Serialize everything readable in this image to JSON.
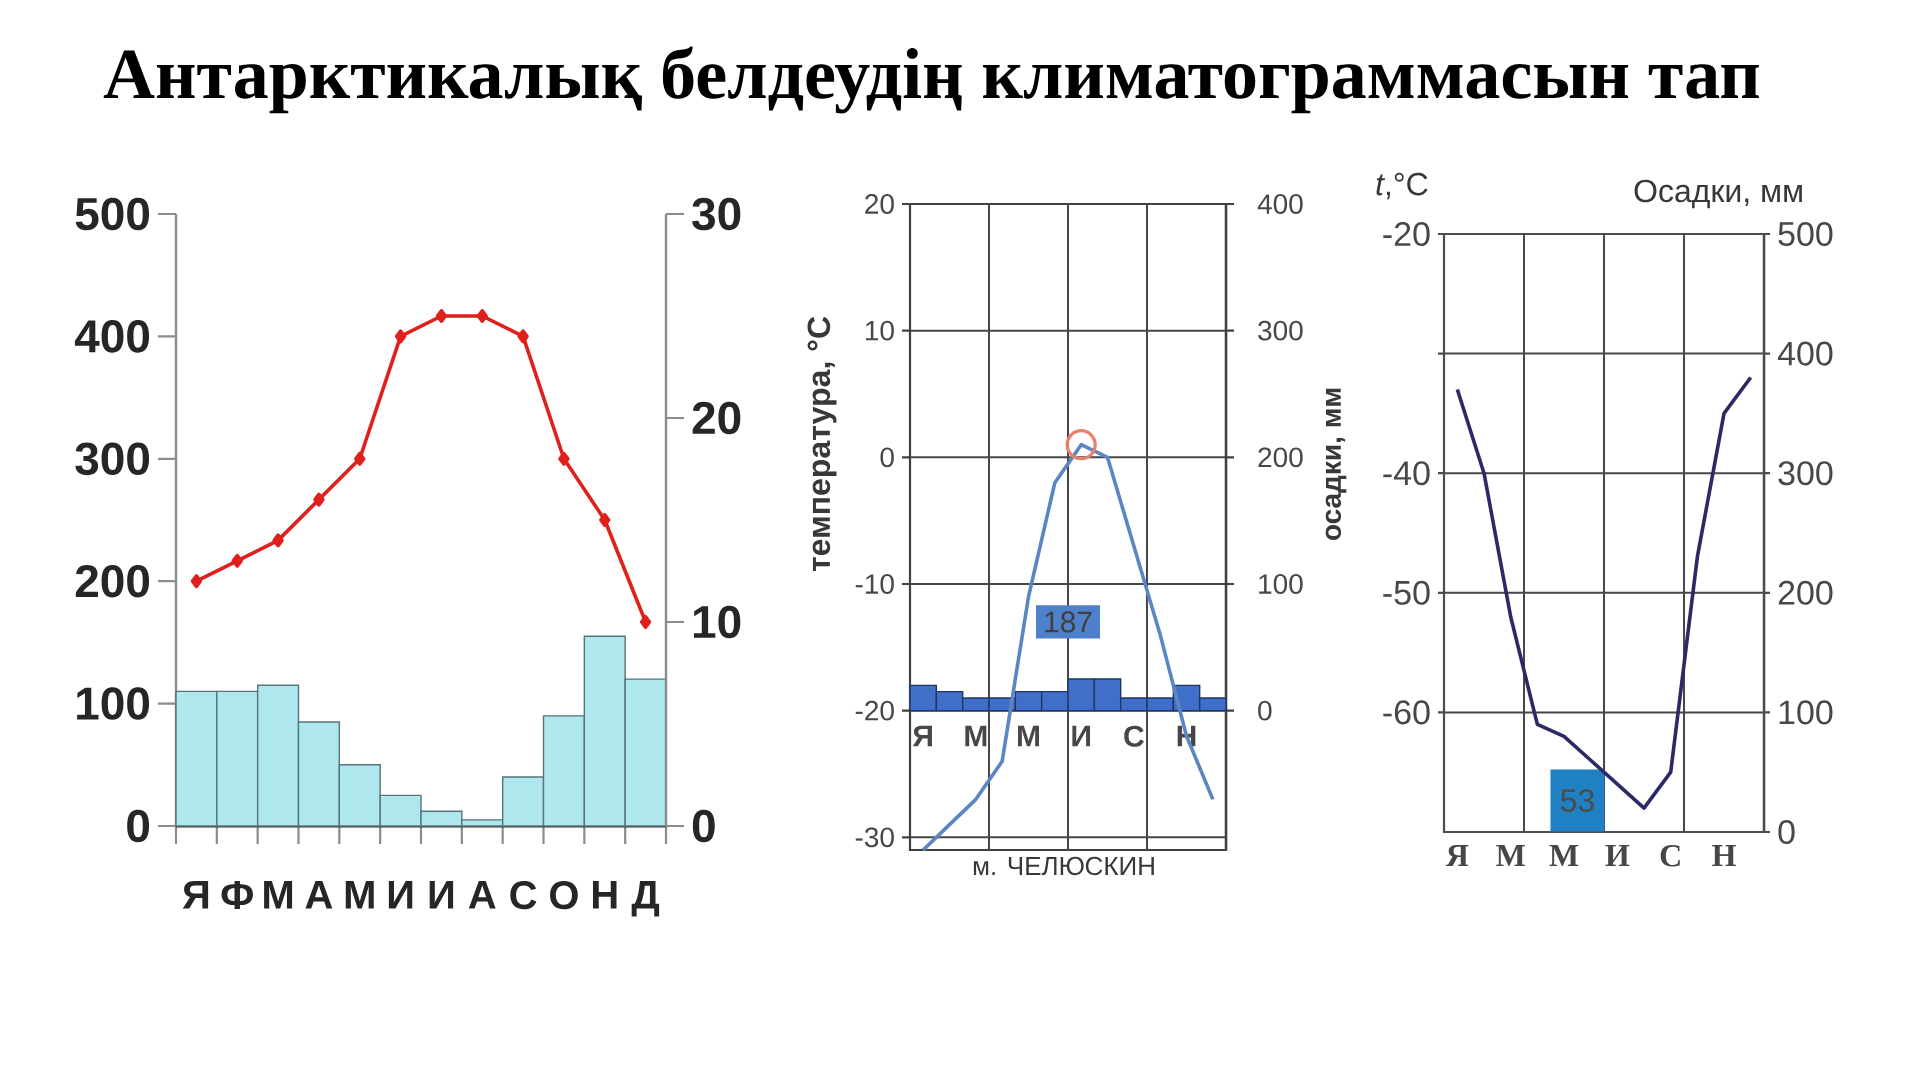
{
  "chart_data": [
    {
      "type": "bar",
      "title": "Антарктикалық белдеудің климатограммасын тап",
      "categories": [
        "Я",
        "Ф",
        "М",
        "А",
        "М",
        "И",
        "И",
        "А",
        "С",
        "О",
        "Н",
        "Д"
      ],
      "series": [
        {
          "type": "bar",
          "color": "#aee8ee",
          "values": [
            110,
            110,
            115,
            85,
            50,
            25,
            12,
            5,
            40,
            90,
            155,
            120
          ]
        },
        {
          "type": "line",
          "axis": "y2",
          "color": "#e0201c",
          "marker": "diamond",
          "values": [
            12,
            13,
            14,
            16,
            18,
            24,
            25,
            25,
            24,
            18,
            15,
            10
          ]
        }
      ],
      "ylim": [
        0,
        500
      ],
      "yticks": [
        0,
        100,
        200,
        300,
        400,
        500
      ],
      "y2lim": [
        0,
        30
      ],
      "y2ticks": [
        0,
        10,
        20,
        30
      ]
    },
    {
      "type": "line",
      "xlabel": "м. ЧЕЛЮСКИН",
      "ylabel": "температура, °C",
      "y2label": "осадки, мм",
      "categories": [
        "Я",
        null,
        "М",
        null,
        "М",
        null,
        "И",
        null,
        "С",
        null,
        "Н",
        null
      ],
      "series": [
        {
          "type": "bar",
          "axis": "y2",
          "color": "#3f6fc8",
          "values": [
            20,
            15,
            10,
            10,
            15,
            15,
            25,
            25,
            10,
            10,
            20,
            10
          ]
        },
        {
          "type": "line",
          "color": "#5b86c2",
          "values": [
            -31,
            -29,
            -27,
            -24,
            -11,
            -2,
            1,
            0,
            -7,
            -14,
            -22,
            -27
          ]
        },
        {
          "type": "scatter",
          "color": "#e8806a",
          "marker": "circle",
          "values": [
            null,
            null,
            null,
            null,
            null,
            null,
            1,
            null,
            null,
            null,
            null,
            null
          ]
        }
      ],
      "ylim": [
        -31,
        20
      ],
      "yticks": [
        -30,
        -20,
        -10,
        0,
        10,
        20
      ],
      "y2lim": [
        -110,
        400
      ],
      "y2ticks": [
        0,
        100,
        200,
        300,
        400
      ],
      "grid": true,
      "annotations": [
        "187"
      ]
    },
    {
      "type": "line",
      "ylabel": "*t*,°C",
      "y2label": "Осадки, мм",
      "categories": [
        "Я",
        null,
        "М",
        null,
        "М",
        null,
        "И",
        null,
        "С",
        null,
        "Н",
        null
      ],
      "series": [
        {
          "color": "#2b2a66",
          "values": [
            -33,
            -40,
            -52,
            -61,
            -62,
            -64,
            -66,
            -68,
            -65,
            -47,
            -35,
            -32
          ]
        }
      ],
      "ylim": [
        -70,
        -20
      ],
      "yticks": [
        -20,
        {
          "value": -30,
          "label": null
        },
        -40,
        -50,
        -60
      ],
      "y2lim": [
        0,
        500
      ],
      "y2ticks": [
        0,
        100,
        200,
        300,
        400,
        500
      ],
      "grid": true,
      "annotations": [
        "53"
      ]
    }
  ]
}
